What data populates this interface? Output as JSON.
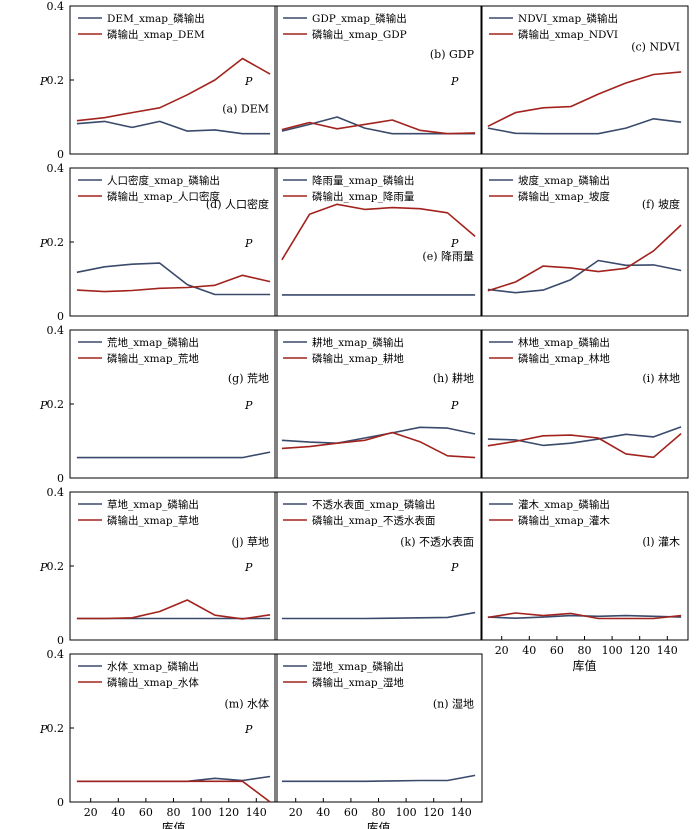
{
  "chart_data": {
    "type": "line",
    "shared_axes": {
      "xlabel": "库值",
      "ylabel": "P",
      "xlim": [
        5,
        155
      ],
      "ylim": [
        0,
        0.4
      ],
      "x_ticks": [
        20,
        40,
        60,
        80,
        100,
        120,
        140
      ],
      "y_ticks": [
        0,
        0.2,
        0.4
      ],
      "legend_position": "top-left",
      "grid": false
    },
    "colors": {
      "xmap_line": "#3a4a6b",
      "phosphorus_line": "#a2231d"
    },
    "x": [
      10,
      30,
      50,
      70,
      90,
      110,
      130,
      150
    ],
    "panels": [
      {
        "annotation": "(a) DEM",
        "series": [
          {
            "name": "DEM_xmap_磷输出",
            "values": [
              0.082,
              0.088,
              0.072,
              0.088,
              0.062,
              0.065,
              0.055,
              0.055
            ]
          },
          {
            "name": "磷输出_xmap_DEM",
            "values": [
              0.09,
              0.098,
              0.112,
              0.125,
              0.16,
              0.2,
              0.258,
              0.216
            ]
          }
        ]
      },
      {
        "annotation": "(b) GDP",
        "series": [
          {
            "name": "GDP_xmap_磷输出",
            "values": [
              0.062,
              0.08,
              0.1,
              0.07,
              0.055,
              0.055,
              0.055,
              0.055
            ]
          },
          {
            "name": "磷输出_xmap_GDP",
            "values": [
              0.066,
              0.085,
              0.068,
              0.08,
              0.092,
              0.064,
              0.055,
              0.057
            ]
          }
        ]
      },
      {
        "annotation": "(c) NDVI",
        "series": [
          {
            "name": "NDVI_xmap_磷输出",
            "values": [
              0.07,
              0.056,
              0.055,
              0.055,
              0.055,
              0.07,
              0.095,
              0.086
            ]
          },
          {
            "name": "磷输出_xmap_NDVI",
            "values": [
              0.075,
              0.112,
              0.125,
              0.128,
              0.162,
              0.192,
              0.215,
              0.222
            ]
          }
        ]
      },
      {
        "annotation": "(d) 人口密度",
        "series": [
          {
            "name": "人口密度_xmap_磷输出",
            "values": [
              0.118,
              0.133,
              0.14,
              0.143,
              0.085,
              0.058,
              0.058,
              0.058
            ]
          },
          {
            "name": "磷输出_xmap_人口密度",
            "values": [
              0.07,
              0.066,
              0.069,
              0.075,
              0.077,
              0.083,
              0.11,
              0.093
            ]
          }
        ]
      },
      {
        "annotation": "(e) 降雨量",
        "series": [
          {
            "name": "降雨量_xmap_磷输出",
            "values": [
              0.057,
              0.057,
              0.057,
              0.057,
              0.057,
              0.057,
              0.057,
              0.057
            ]
          },
          {
            "name": "磷输出_xmap_降雨量",
            "values": [
              0.152,
              0.275,
              0.302,
              0.288,
              0.293,
              0.29,
              0.279,
              0.215
            ]
          }
        ]
      },
      {
        "annotation": "(f) 坡度",
        "series": [
          {
            "name": "坡度_xmap_磷输出",
            "values": [
              0.072,
              0.063,
              0.07,
              0.098,
              0.15,
              0.137,
              0.138,
              0.123
            ]
          },
          {
            "name": "磷输出_xmap_坡度",
            "values": [
              0.068,
              0.092,
              0.135,
              0.13,
              0.12,
              0.129,
              0.176,
              0.246
            ]
          }
        ]
      },
      {
        "annotation": "(g) 荒地",
        "series": [
          {
            "name": "荒地_xmap_磷输出",
            "values": [
              0.055,
              0.055,
              0.055,
              0.055,
              0.055,
              0.055,
              0.055,
              0.07
            ]
          },
          {
            "name": "磷输出_xmap_荒地",
            "values": []
          }
        ]
      },
      {
        "annotation": "(h) 耕地",
        "series": [
          {
            "name": "耕地_xmap_磷输出",
            "values": [
              0.102,
              0.097,
              0.094,
              0.108,
              0.122,
              0.137,
              0.135,
              0.119
            ]
          },
          {
            "name": "磷输出_xmap_耕地",
            "values": [
              0.08,
              0.085,
              0.094,
              0.102,
              0.123,
              0.098,
              0.06,
              0.055
            ]
          }
        ]
      },
      {
        "annotation": "(i) 林地",
        "series": [
          {
            "name": "林地_xmap_磷输出",
            "values": [
              0.105,
              0.103,
              0.088,
              0.094,
              0.105,
              0.118,
              0.111,
              0.138
            ]
          },
          {
            "name": "磷输出_xmap_林地",
            "values": [
              0.087,
              0.099,
              0.114,
              0.116,
              0.108,
              0.065,
              0.056,
              0.12
            ]
          }
        ]
      },
      {
        "annotation": "(j) 草地",
        "series": [
          {
            "name": "草地_xmap_磷输出",
            "values": [
              0.058,
              0.058,
              0.058,
              0.058,
              0.058,
              0.058,
              0.058,
              0.058
            ]
          },
          {
            "name": "磷输出_xmap_草地",
            "values": [
              0.058,
              0.058,
              0.06,
              0.077,
              0.108,
              0.067,
              0.057,
              0.068
            ]
          }
        ]
      },
      {
        "annotation": "(k) 不透水表面",
        "series": [
          {
            "name": "不透水表面_xmap_磷输出",
            "values": [
              0.058,
              0.058,
              0.058,
              0.058,
              0.059,
              0.06,
              0.061,
              0.074
            ]
          },
          {
            "name": "磷输出_xmap_不透水表面",
            "values": []
          }
        ]
      },
      {
        "annotation": "(l) 灌木",
        "series": [
          {
            "name": "灌木_xmap_磷输出",
            "values": [
              0.062,
              0.059,
              0.062,
              0.066,
              0.064,
              0.066,
              0.064,
              0.062
            ]
          },
          {
            "name": "磷输出_xmap_灌木",
            "values": [
              0.061,
              0.073,
              0.066,
              0.072,
              0.058,
              0.058,
              0.058,
              0.066
            ]
          }
        ]
      },
      {
        "annotation": "(m) 水体",
        "series": [
          {
            "name": "水体_xmap_磷输出",
            "values": [
              0.056,
              0.056,
              0.056,
              0.056,
              0.056,
              0.064,
              0.058,
              0.069
            ]
          },
          {
            "name": "磷输出_xmap_水体",
            "values": [
              0.056,
              0.056,
              0.056,
              0.056,
              0.056,
              0.056,
              0.056,
              0.0
            ]
          }
        ]
      },
      {
        "annotation": "(n) 湿地",
        "series": [
          {
            "name": "湿地_xmap_磷输出",
            "values": [
              0.056,
              0.056,
              0.056,
              0.056,
              0.057,
              0.058,
              0.058,
              0.072
            ]
          },
          {
            "name": "磷输出_xmap_湿地",
            "values": []
          }
        ]
      }
    ]
  }
}
